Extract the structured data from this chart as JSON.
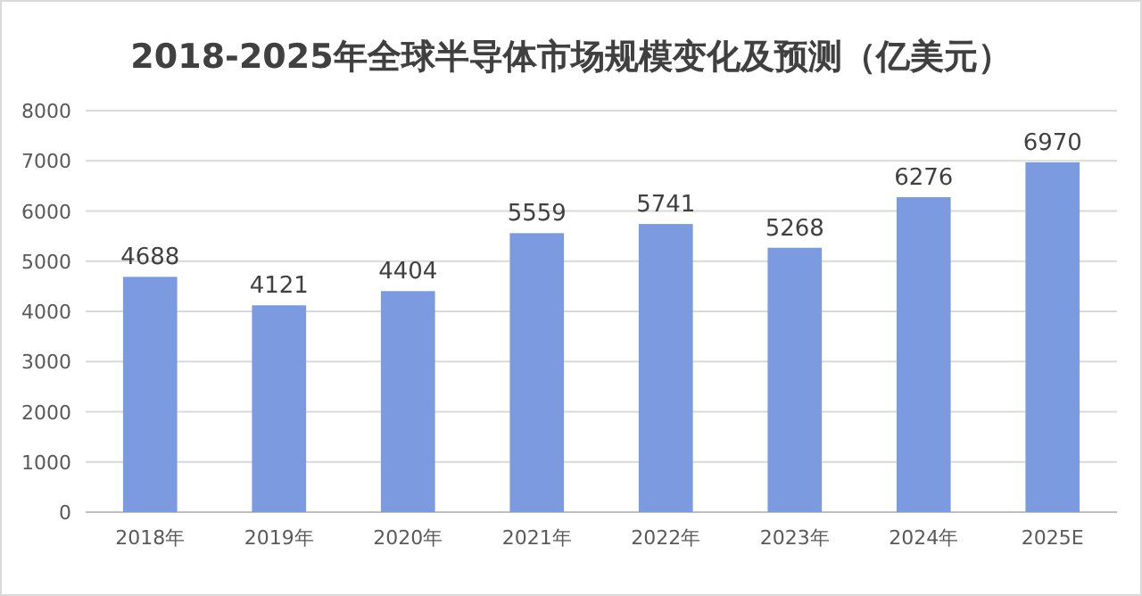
{
  "chart_data": {
    "type": "bar",
    "title": "2018-2025年全球半导体市场规模变化及预测（亿美元）",
    "categories": [
      "2018年",
      "2019年",
      "2020年",
      "2021年",
      "2022年",
      "2023年",
      "2024年",
      "2025E"
    ],
    "values": [
      4688,
      4121,
      4404,
      5559,
      5741,
      5268,
      6276,
      6970
    ],
    "color": "#7b9ae0",
    "ylim": [
      0,
      8000
    ],
    "yticks": [
      0,
      1000,
      2000,
      3000,
      4000,
      5000,
      6000,
      7000,
      8000
    ],
    "grid": "y",
    "data_labels": true
  }
}
